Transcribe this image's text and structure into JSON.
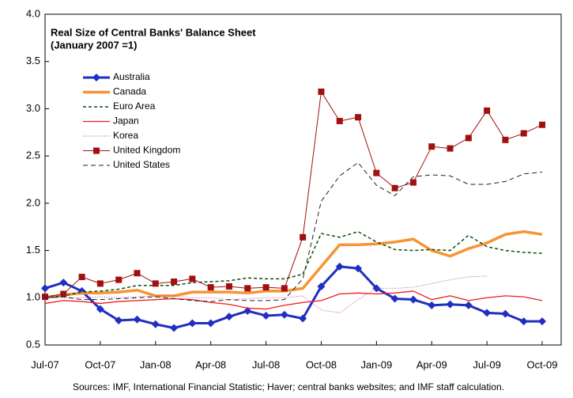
{
  "chart_data": {
    "type": "line",
    "title": "Real Size of Central Banks' Balance Sheet",
    "subtitle": "(January 2007 =1)",
    "source": "Sources: IMF, International Financial Statistic; Haver; central banks websites; and IMF staff calculation.",
    "categories": [
      "Jul-07",
      null,
      null,
      "Oct-07",
      null,
      null,
      "Jan-08",
      null,
      null,
      "Apr-08",
      null,
      null,
      "Jul-08",
      null,
      null,
      "Oct-08",
      null,
      null,
      "Jan-09",
      null,
      null,
      "Apr-09",
      null,
      null,
      "Jul-09",
      null,
      null,
      "Oct-09"
    ],
    "ylim": [
      0.5,
      4.0
    ],
    "yticks": [
      0.5,
      {
        "value": 1,
        "label": "1.0"
      },
      1.5,
      {
        "value": 2,
        "label": "2.0"
      },
      2.5,
      {
        "value": 3,
        "label": "3.0"
      },
      3.5,
      {
        "value": 4,
        "label": "4.0"
      }
    ],
    "grid": false,
    "legend": "upper-left",
    "series": [
      {
        "name": "Australia",
        "color": "#1f2fbf",
        "width": 3,
        "marker": "diamond",
        "values": [
          1.1,
          1.16,
          1.07,
          0.88,
          0.76,
          0.77,
          0.72,
          0.68,
          0.73,
          0.73,
          0.8,
          0.86,
          0.81,
          0.82,
          0.78,
          1.12,
          1.33,
          1.31,
          1.1,
          0.99,
          0.98,
          0.92,
          0.93,
          0.92,
          0.84,
          0.83,
          0.75,
          0.75
        ]
      },
      {
        "name": "Canada",
        "color": "#f79433",
        "width": 3.5,
        "values": [
          1.0,
          1.03,
          1.05,
          1.05,
          1.06,
          1.08,
          1.02,
          1.02,
          1.06,
          1.06,
          1.06,
          1.05,
          1.07,
          1.07,
          1.1,
          1.33,
          1.56,
          1.56,
          1.57,
          1.59,
          1.62,
          1.5,
          1.44,
          1.52,
          1.58,
          1.67,
          1.7,
          1.67
        ]
      },
      {
        "name": "Euro Area",
        "color": "#0f4d0f",
        "width": 1.5,
        "dash": "4,3",
        "values": [
          1.0,
          1.02,
          1.06,
          1.07,
          1.09,
          1.13,
          1.13,
          1.13,
          1.16,
          1.17,
          1.18,
          1.21,
          1.2,
          1.2,
          1.25,
          1.68,
          1.64,
          1.7,
          1.59,
          1.51,
          1.5,
          1.51,
          1.5,
          1.66,
          1.54,
          1.5,
          1.48,
          1.47
        ]
      },
      {
        "name": "Japan",
        "color": "#ee1c1c",
        "width": 1.3,
        "values": [
          0.94,
          0.97,
          0.96,
          0.94,
          0.96,
          0.97,
          0.98,
          0.99,
          0.98,
          0.95,
          0.93,
          0.89,
          0.88,
          0.92,
          0.95,
          0.97,
          1.04,
          1.05,
          1.04,
          1.05,
          1.07,
          0.98,
          1.02,
          0.97,
          1.0,
          1.02,
          1.01,
          0.97
        ]
      },
      {
        "name": "Korea",
        "color": "#b040b0",
        "width": 1,
        "dash": "1,2",
        "values": [
          1.0,
          1.0,
          1.0,
          1.01,
          1.0,
          1.01,
          1.02,
          1.02,
          1.0,
          1.0,
          0.98,
          0.99,
          1.0,
          1.0,
          1.02,
          0.87,
          0.84,
          0.98,
          1.1,
          1.1,
          1.11,
          1.15,
          1.19,
          1.22,
          1.23,
          null,
          null,
          null
        ]
      },
      {
        "name": "United Kingdom",
        "color": "#a01010",
        "width": 1,
        "marker": "square",
        "values": [
          1.01,
          1.04,
          1.22,
          1.15,
          1.19,
          1.26,
          1.15,
          1.17,
          1.2,
          1.11,
          1.12,
          1.1,
          1.11,
          1.1,
          1.64,
          3.18,
          2.87,
          2.91,
          2.32,
          2.16,
          2.22,
          2.6,
          2.58,
          2.69,
          2.98,
          2.67,
          2.74,
          2.83
        ]
      },
      {
        "name": "United States",
        "color": "#222222",
        "width": 1,
        "dash": "6,4",
        "values": [
          1.0,
          1.01,
          0.98,
          0.98,
          0.99,
          1.0,
          1.01,
          0.99,
          0.97,
          0.96,
          0.98,
          0.97,
          0.97,
          0.98,
          1.2,
          2.02,
          2.29,
          2.43,
          2.19,
          2.08,
          2.28,
          2.3,
          2.29,
          2.2,
          2.2,
          2.23,
          2.31,
          2.33
        ]
      }
    ]
  }
}
